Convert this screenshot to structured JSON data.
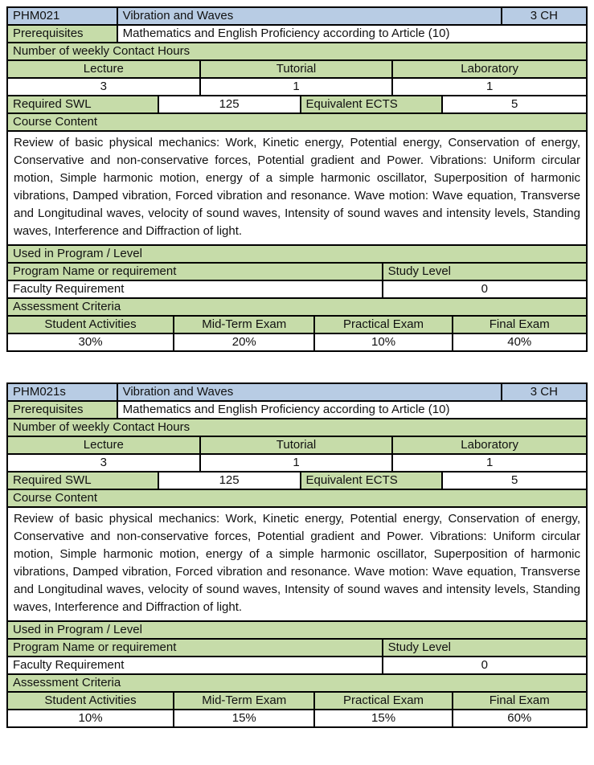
{
  "colors": {
    "header_blue": "#B8CCE4",
    "section_green": "#C6DCA9",
    "border_black": "#000000"
  },
  "tables": [
    {
      "code": "PHM021",
      "title": "Vibration and Waves",
      "credit": "3 CH",
      "prerequisites_label": "Prerequisites",
      "prerequisites_value": "Mathematics and English Proficiency according to Article (10)",
      "contact_hours_label": "Number of weekly Contact Hours",
      "contact_columns": [
        "Lecture",
        "Tutorial",
        "Laboratory"
      ],
      "contact_values": [
        "3",
        "1",
        "1"
      ],
      "swl_label": "Required SWL",
      "swl_value": "125",
      "ects_label": "Equivalent ECTS",
      "ects_value": "5",
      "course_content_label": "Course Content",
      "course_content": "Review of basic physical mechanics: Work, Kinetic energy, Potential energy, Conservation of energy, Conservative and non-conservative forces, Potential gradient and Power. Vibrations: Uniform circular motion, Simple harmonic motion, energy of a simple harmonic oscillator, Superposition of harmonic vibrations, Damped vibration, Forced vibration and resonance. Wave motion: Wave equation, Transverse and Longitudinal waves, velocity of sound waves, Intensity of sound waves and intensity levels, Standing waves, Interference and Diffraction of light.",
      "used_in_label": "Used in Program / Level",
      "program_name_label": "Program Name or requirement",
      "study_level_label": "Study Level",
      "program_name_value": "Faculty Requirement",
      "study_level_value": "0",
      "assessment_label": "Assessment Criteria",
      "assessment_headers": [
        "Student Activities",
        "Mid-Term Exam",
        "Practical Exam",
        "Final Exam"
      ],
      "assessment_values": [
        "30%",
        "20%",
        "10%",
        "40%"
      ]
    },
    {
      "code": "PHM021s",
      "title": "Vibration and Waves",
      "credit": "3 CH",
      "prerequisites_label": "Prerequisites",
      "prerequisites_value": "Mathematics and English Proficiency according to Article (10)",
      "contact_hours_label": "Number of weekly Contact Hours",
      "contact_columns": [
        "Lecture",
        "Tutorial",
        "Laboratory"
      ],
      "contact_values": [
        "3",
        "1",
        "1"
      ],
      "swl_label": "Required SWL",
      "swl_value": "125",
      "ects_label": "Equivalent ECTS",
      "ects_value": "5",
      "course_content_label": "Course Content",
      "course_content": "Review of basic physical mechanics: Work, Kinetic energy, Potential energy, Conservation of energy, Conservative and non-conservative forces, Potential gradient and Power. Vibrations: Uniform circular motion, Simple harmonic motion, energy of a simple harmonic oscillator, Superposition of harmonic vibrations, Damped vibration, Forced vibration and resonance. Wave motion: Wave equation, Transverse and Longitudinal waves, velocity of sound waves, Intensity of sound waves and intensity levels, Standing waves, Interference and Diffraction of light.",
      "used_in_label": "Used in Program / Level",
      "program_name_label": "Program Name or requirement",
      "study_level_label": "Study Level",
      "program_name_value": "Faculty Requirement",
      "study_level_value": "0",
      "assessment_label": "Assessment Criteria",
      "assessment_headers": [
        "Student Activities",
        "Mid-Term Exam",
        "Practical Exam",
        "Final Exam"
      ],
      "assessment_values": [
        "10%",
        "15%",
        "15%",
        "60%"
      ]
    }
  ]
}
